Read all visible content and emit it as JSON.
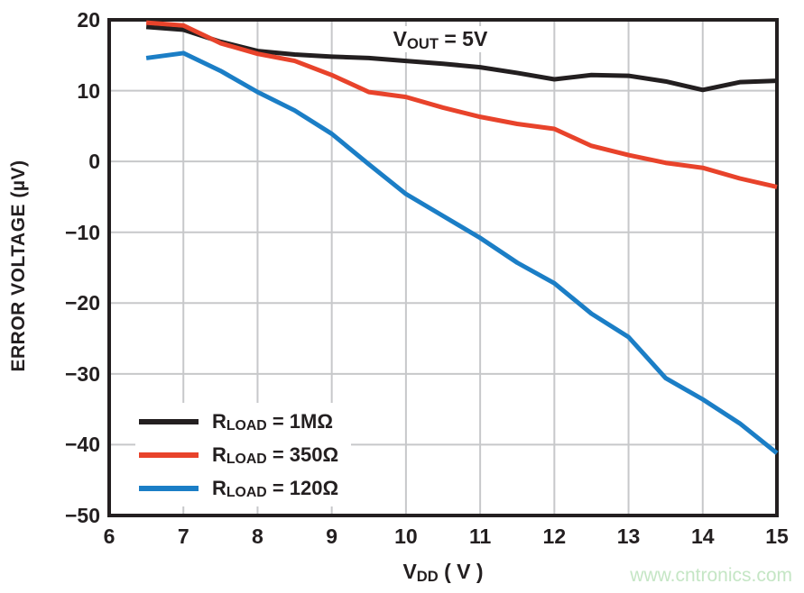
{
  "page": {
    "background": "#ffffff"
  },
  "colors": {
    "axis": "#231f20",
    "grid": "#c7c8ca",
    "text": "#231f20",
    "legend_bg": "#ffffff",
    "annotation_bg": "#ffffff"
  },
  "watermark": {
    "text": "www.cntronics.com",
    "color": "#c5e6c5"
  },
  "chart_data": {
    "type": "line",
    "title": "",
    "annotation": {
      "pre": "V",
      "sub": "OUT",
      "post": " = 5V"
    },
    "xlabel": {
      "pre": "V",
      "sub": "DD",
      "post": " ( V )"
    },
    "ylabel": "ERROR VOLTAGE (µV)",
    "xlim": [
      6,
      15
    ],
    "ylim": [
      -50,
      20
    ],
    "x_ticks": [
      6,
      7,
      8,
      9,
      10,
      11,
      12,
      13,
      14,
      15
    ],
    "y_ticks": [
      20,
      10,
      0,
      -10,
      -20,
      -30,
      -40,
      -50
    ],
    "grid": true,
    "legend_position": "lower-left",
    "x": [
      6.5,
      7,
      7.5,
      8,
      8.5,
      9,
      9.5,
      10,
      10.5,
      11,
      11.5,
      12,
      12.5,
      13,
      13.5,
      14,
      14.5,
      15
    ],
    "series": [
      {
        "name": "RLOAD = 1MΩ",
        "label": {
          "pre": "R",
          "sub": "LOAD",
          "post": " = 1MΩ"
        },
        "color": "#231f20",
        "values": [
          19.0,
          18.6,
          16.9,
          15.6,
          15.1,
          14.8,
          14.6,
          14.2,
          13.8,
          13.3,
          12.5,
          11.6,
          12.2,
          12.1,
          11.3,
          10.1,
          11.2,
          11.4
        ]
      },
      {
        "name": "RLOAD = 350Ω",
        "label": {
          "pre": "R",
          "sub": "LOAD",
          "post": " = 350Ω"
        },
        "color": "#e8432b",
        "values": [
          19.6,
          19.2,
          16.7,
          15.2,
          14.2,
          12.2,
          9.8,
          9.1,
          7.6,
          6.3,
          5.3,
          4.6,
          2.2,
          0.9,
          -0.2,
          -0.9,
          -2.4,
          -3.6
        ]
      },
      {
        "name": "RLOAD = 120Ω",
        "label": {
          "pre": "R",
          "sub": "LOAD",
          "post": " = 120Ω"
        },
        "color": "#1b7ec6",
        "values": [
          14.6,
          15.3,
          12.8,
          9.8,
          7.2,
          3.9,
          -0.4,
          -4.6,
          -7.7,
          -10.8,
          -14.3,
          -17.2,
          -21.5,
          -24.8,
          -30.6,
          -33.6,
          -37.0,
          -41.2
        ]
      }
    ]
  }
}
